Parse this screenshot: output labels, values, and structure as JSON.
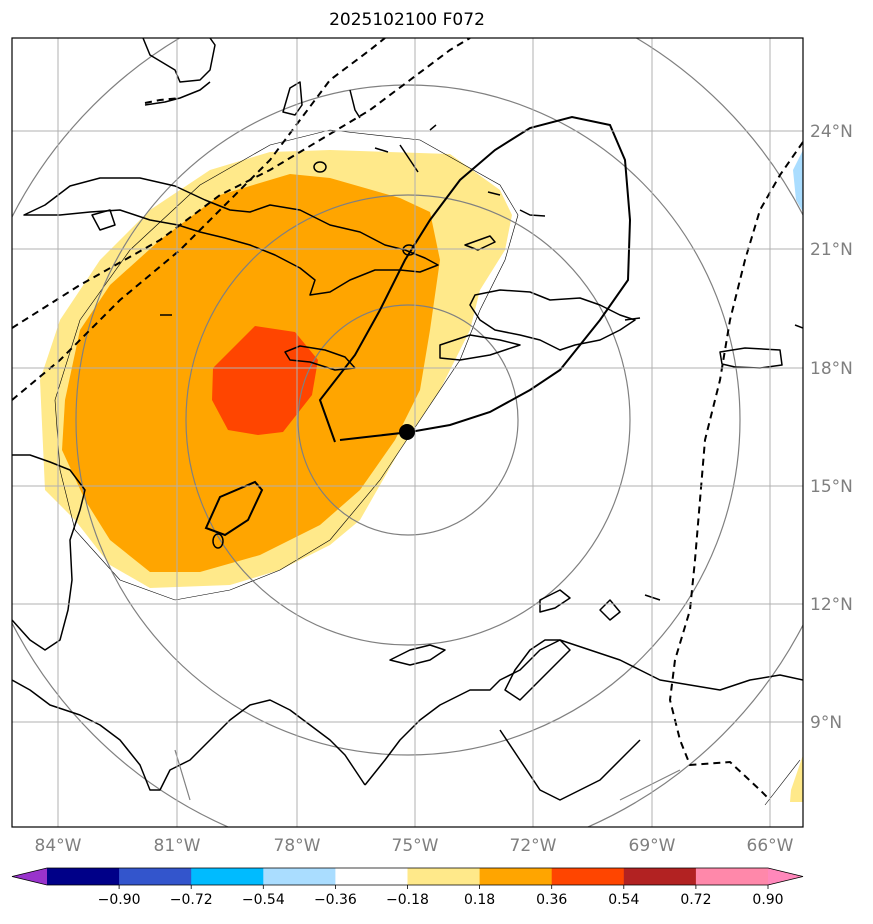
{
  "title": "2025102100 F072",
  "lon_labels": [
    "84°W",
    "81°W",
    "78°W",
    "75°W",
    "72°W",
    "69°W",
    "66°W"
  ],
  "lat_labels": [
    "24°N",
    "21°N",
    "18°N",
    "15°N",
    "12°N",
    "9°N"
  ],
  "colorbar": {
    "ticks": [
      "−0.90",
      "−0.72",
      "−0.54",
      "−0.36",
      "−0.18",
      "0.18",
      "0.36",
      "0.54",
      "0.72",
      "0.90"
    ],
    "colors": [
      "#9933cc",
      "#000088",
      "#3355cc",
      "#00bbff",
      "#aaddff",
      "#ffffff",
      "#ffe98a",
      "#ffa500",
      "#ff4500",
      "#b22222",
      "#ff88aa",
      "#ff88bb"
    ]
  },
  "storm_center": {
    "lon": "75°W",
    "lat": "16.3°N"
  }
}
